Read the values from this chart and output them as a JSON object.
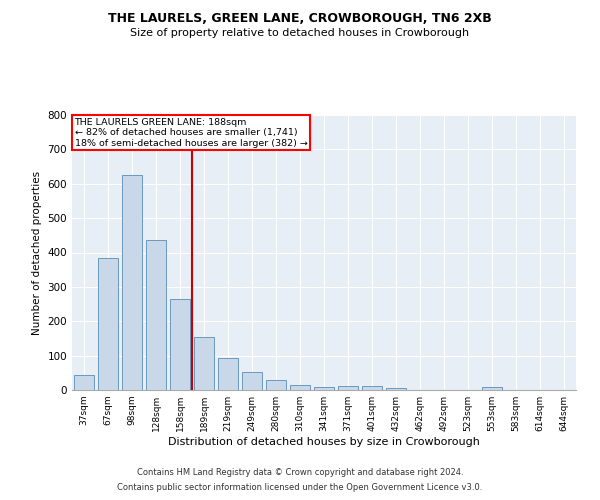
{
  "title": "THE LAURELS, GREEN LANE, CROWBOROUGH, TN6 2XB",
  "subtitle": "Size of property relative to detached houses in Crowborough",
  "xlabel": "Distribution of detached houses by size in Crowborough",
  "ylabel": "Number of detached properties",
  "footer_line1": "Contains HM Land Registry data © Crown copyright and database right 2024.",
  "footer_line2": "Contains public sector information licensed under the Open Government Licence v3.0.",
  "annotation_line1": "THE LAURELS GREEN LANE: 188sqm",
  "annotation_line2": "← 82% of detached houses are smaller (1,741)",
  "annotation_line3": "18% of semi-detached houses are larger (382) →",
  "bar_color": "#c8d8e8",
  "bar_edge_color": "#5b8db8",
  "vline_color": "#cc0000",
  "background_color": "#e8eef5",
  "categories": [
    "37sqm",
    "67sqm",
    "98sqm",
    "128sqm",
    "158sqm",
    "189sqm",
    "219sqm",
    "249sqm",
    "280sqm",
    "310sqm",
    "341sqm",
    "371sqm",
    "401sqm",
    "432sqm",
    "462sqm",
    "492sqm",
    "523sqm",
    "553sqm",
    "583sqm",
    "614sqm",
    "644sqm"
  ],
  "values": [
    45,
    383,
    625,
    435,
    265,
    155,
    93,
    53,
    30,
    15,
    10,
    12,
    12,
    7,
    0,
    0,
    0,
    8,
    0,
    0,
    0
  ],
  "vline_position": 4.5,
  "ylim": [
    0,
    800
  ],
  "yticks": [
    0,
    100,
    200,
    300,
    400,
    500,
    600,
    700,
    800
  ]
}
